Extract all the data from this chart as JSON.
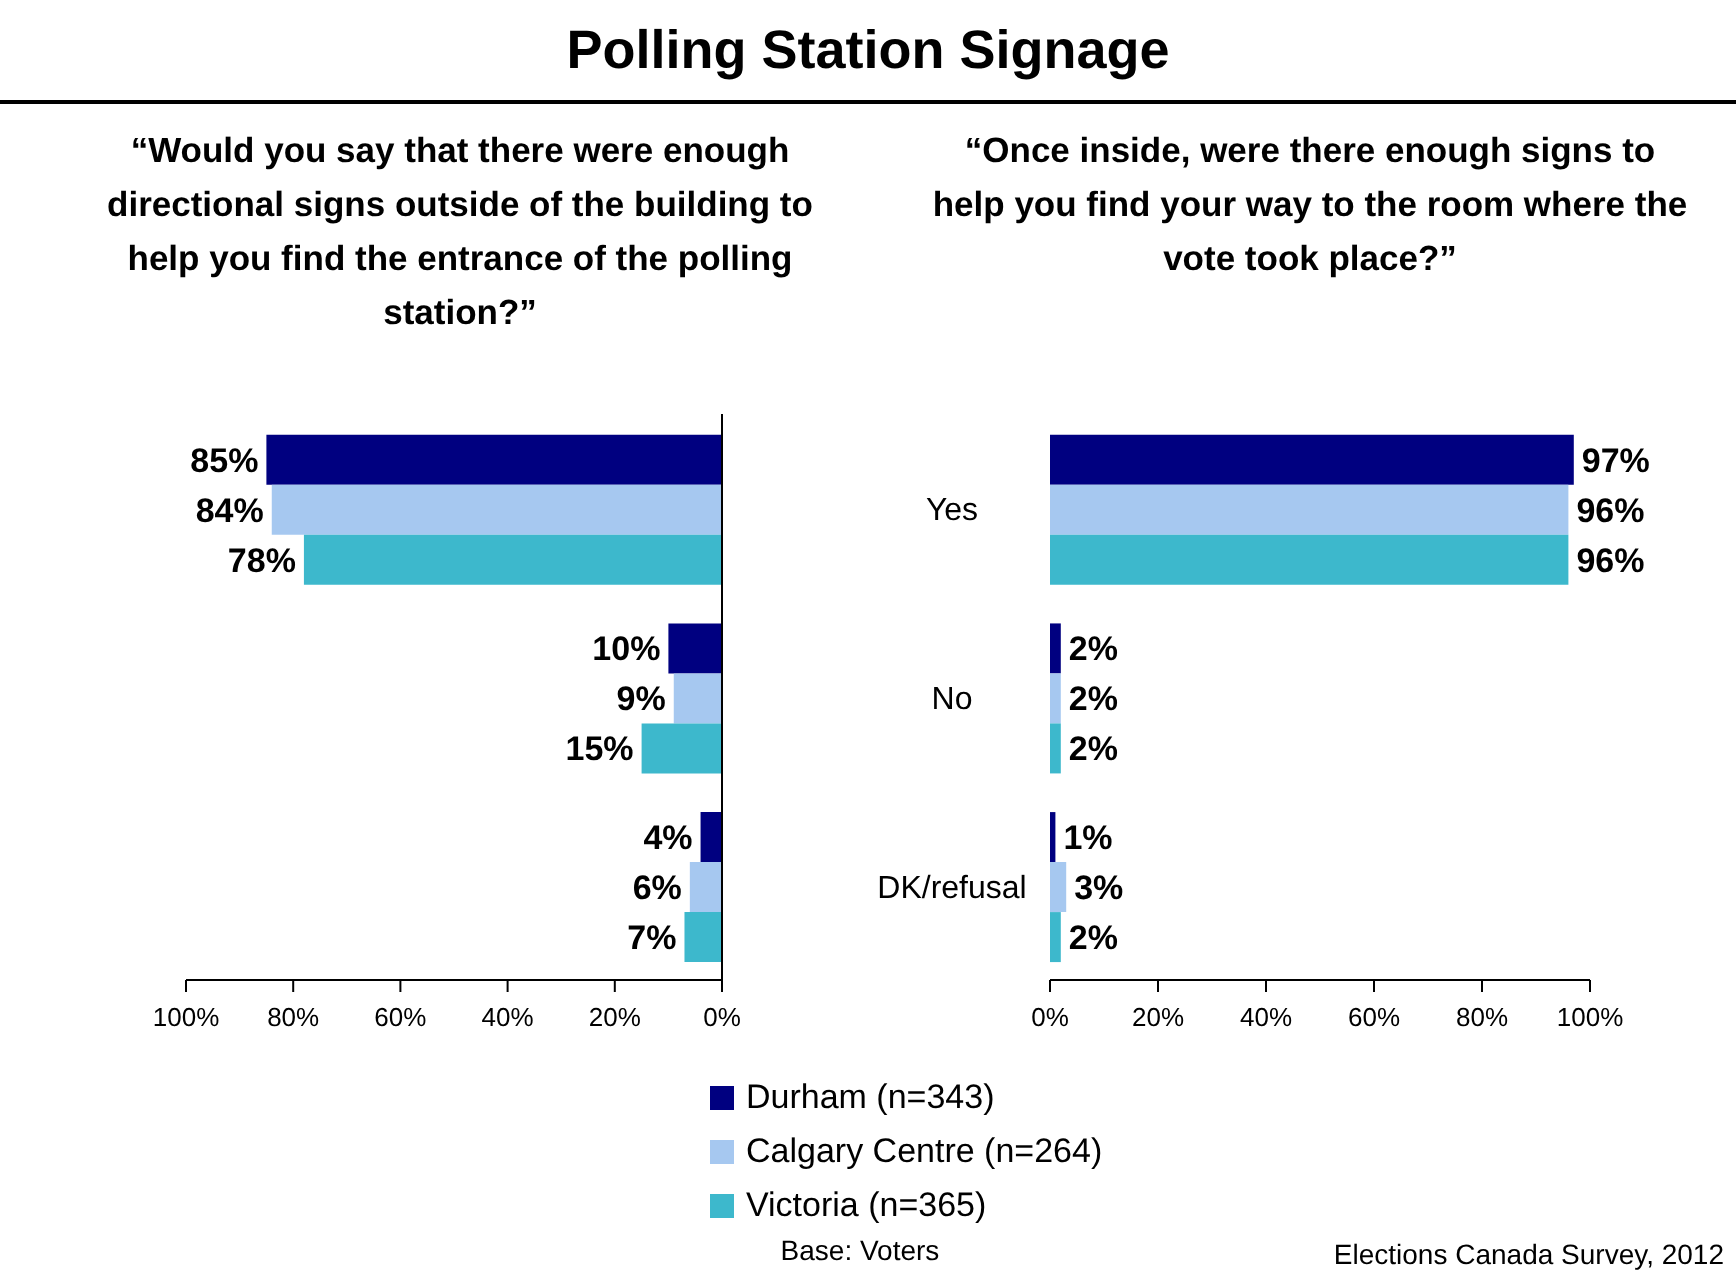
{
  "chart_data": [
    {
      "type": "bar",
      "orientation": "horizontal",
      "title": "Polling Station Signage",
      "subtitle": "“Would you say that there were enough directional signs outside of the building to help you find the entrance of the polling station?”",
      "categories": [
        "Yes",
        "No",
        "DK/refusal"
      ],
      "series": [
        {
          "name": "Durham (n=343)",
          "color": "#000080",
          "values": [
            85,
            10,
            4
          ],
          "value_labels": [
            "85%",
            "10%",
            "4%"
          ]
        },
        {
          "name": "Calgary Centre (n=264)",
          "color": "#a6c8f0",
          "values": [
            84,
            9,
            6
          ],
          "value_labels": [
            "84%",
            "9%",
            "6%"
          ]
        },
        {
          "name": "Victoria (n=365)",
          "color": "#3db8cc",
          "values": [
            78,
            15,
            7
          ],
          "value_labels": [
            "78%",
            "15%",
            "7%"
          ]
        }
      ],
      "xlim": [
        100,
        0
      ],
      "xticks": [
        {
          "value": 100,
          "label": "100%"
        },
        {
          "value": 80,
          "label": "80%"
        },
        {
          "value": 60,
          "label": "60%"
        },
        {
          "value": 40,
          "label": "40%"
        },
        {
          "value": 20,
          "label": "20%"
        },
        {
          "value": 0,
          "label": "0%"
        }
      ],
      "legend": "bottom",
      "annotations": [
        "Base: Voters"
      ]
    },
    {
      "type": "bar",
      "orientation": "horizontal",
      "subtitle": "“Once inside, were there enough signs to help you find your way to the room where the vote took place?”",
      "categories": [
        null,
        null,
        null
      ],
      "series": [
        {
          "color": "#000080",
          "values": [
            97,
            2,
            1
          ],
          "value_labels": [
            "97%",
            "2%",
            "1%"
          ]
        },
        {
          "color": "#a6c8f0",
          "values": [
            96,
            2,
            3
          ],
          "value_labels": [
            "96%",
            "2%",
            "3%"
          ]
        },
        {
          "color": "#3db8cc",
          "values": [
            96,
            2,
            2
          ],
          "value_labels": [
            "96%",
            "2%",
            "2%"
          ]
        }
      ],
      "xlim": [
        0,
        100
      ],
      "xticks": [
        {
          "value": 0,
          "label": "0%"
        },
        {
          "value": 20,
          "label": "20%"
        },
        {
          "value": 40,
          "label": "40%"
        },
        {
          "value": 60,
          "label": "60%"
        },
        {
          "value": 80,
          "label": "80%"
        },
        {
          "value": 100,
          "label": "100%"
        }
      ],
      "tick_labels": "x",
      "annotations": [
        "Elections Canada Survey, 2012"
      ]
    }
  ]
}
